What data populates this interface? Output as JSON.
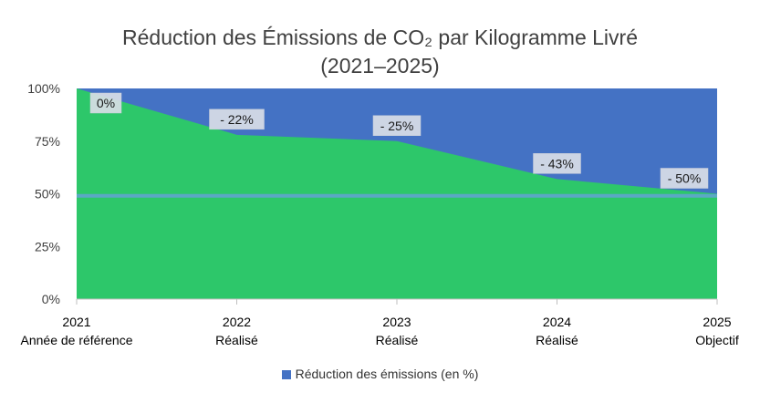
{
  "chart_data": {
    "type": "area",
    "title_line1": "Réduction des Émissions de CO₂ par Kilogramme Livré",
    "title_line2": "(2021–2025)",
    "categories": [
      "2021",
      "2022",
      "2023",
      "2024",
      "2025"
    ],
    "category_sublabels": [
      "Année de référence",
      "Réalisé",
      "Réalisé",
      "Réalisé",
      "Objectif"
    ],
    "y_ticks": [
      "0%",
      "25%",
      "50%",
      "75%",
      "100%"
    ],
    "ylim": [
      0,
      100
    ],
    "series": [
      {
        "name": "Réduction des émissions (en %)",
        "color": "#4472C4",
        "values": [
          0,
          22,
          25,
          43,
          50
        ],
        "data_labels": [
          "0%",
          "-  22%",
          "- 25%",
          "- 43%",
          "- 50%"
        ]
      }
    ],
    "remaining_color": "#2DC76A",
    "reference_line": {
      "value": 49,
      "color": "#5BA8C4"
    },
    "legend": {
      "position": "bottom",
      "label": "Réduction des émissions (en %)"
    },
    "grid": false
  }
}
